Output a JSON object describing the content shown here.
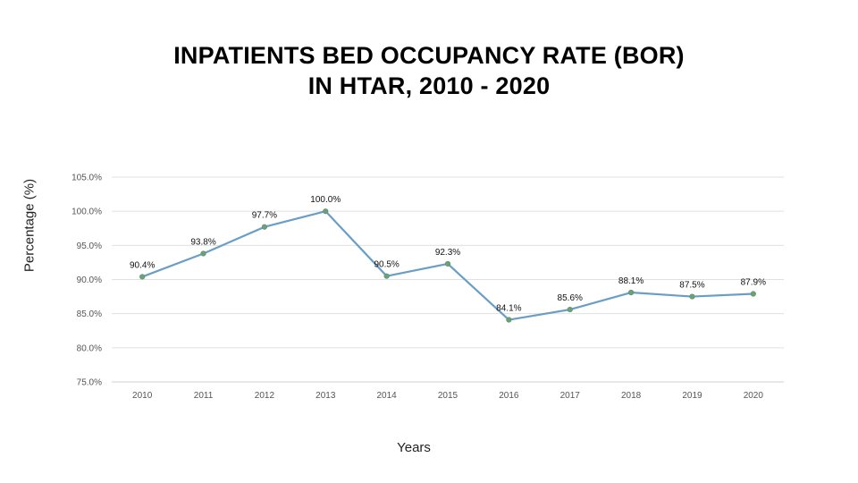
{
  "chart_data": {
    "type": "line",
    "title_line1": "INPATIENTS BED OCCUPANCY RATE (BOR)",
    "title_line2": "IN HTAR, 2010 - 2020",
    "xlabel": "Years",
    "ylabel": "Percentage (%)",
    "categories": [
      "2010",
      "2011",
      "2012",
      "2013",
      "2014",
      "2015",
      "2016",
      "2017",
      "2018",
      "2019",
      "2020"
    ],
    "values": [
      90.4,
      93.8,
      97.7,
      100.0,
      90.5,
      92.3,
      84.1,
      85.6,
      88.1,
      87.5,
      87.9
    ],
    "data_labels": [
      "90.4%",
      "93.8%",
      "97.7%",
      "100.0%",
      "90.5%",
      "92.3%",
      "84.1%",
      "85.6%",
      "88.1%",
      "87.5%",
      "87.9%"
    ],
    "yticks": [
      "75.0%",
      "80.0%",
      "85.0%",
      "90.0%",
      "95.0%",
      "100.0%",
      "105.0%"
    ],
    "ylim": [
      75,
      105
    ],
    "grid": true,
    "legend": "none",
    "line_color": "#6a9ec6",
    "marker_color": "#6aa07a"
  }
}
